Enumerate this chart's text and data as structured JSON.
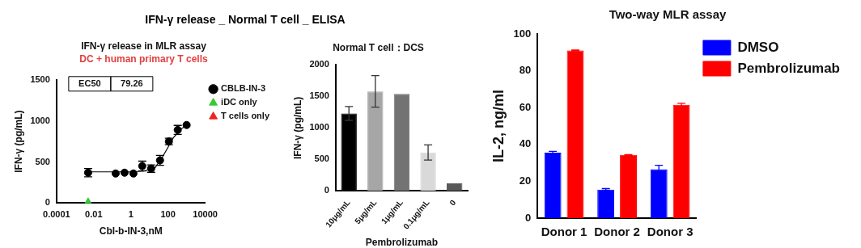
{
  "chart_data": [
    {
      "type": "scatter",
      "title": "IFN-γ release in MLR assay",
      "subtitle": "DC + human primary T cells",
      "xlabel": "Cbl-b-IN-3,nM",
      "ylabel": "IFN-γ (pg/mL)",
      "annotations": [
        "IFN-γ release _ Normal T cell _ ELISA",
        "EC50",
        "79.26"
      ],
      "log": "x",
      "xlim": [
        0.0001,
        10000
      ],
      "xticks": [
        0.0001,
        0.01,
        1,
        100,
        10000
      ],
      "ylim": [
        0,
        1500
      ],
      "yticks": [
        0,
        500,
        1000,
        1500
      ],
      "grid": false,
      "legend": "top right",
      "series": [
        {
          "name": "CBLB-IN-3",
          "type": "scatter",
          "marker": "circle",
          "color": "#000000",
          "x": [
            0.005,
            0.152,
            0.457,
            1.37,
            4.1,
            12.3,
            37,
            111,
            333,
            1000
          ],
          "values": [
            370,
            360,
            370,
            360,
            450,
            420,
            520,
            750,
            890,
            950
          ],
          "errors": [
            50,
            null,
            null,
            null,
            60,
            45,
            60,
            40,
            55,
            null
          ]
        },
        {
          "type": "line",
          "marker": "none",
          "color": "#000000",
          "x": [
            0.005,
            1,
            5,
            20,
            50,
            100,
            200,
            500,
            1000
          ],
          "values": [
            380,
            380,
            390,
            430,
            560,
            680,
            800,
            900,
            950
          ]
        },
        {
          "name": "iDC only",
          "type": "scatter",
          "marker": "triangle",
          "color": "#33cc33",
          "x": [
            0.005
          ],
          "values": [
            20
          ]
        },
        {
          "name": "T cells only",
          "type": "scatter",
          "marker": "triangle",
          "color": "#ee2222"
        }
      ]
    },
    {
      "type": "bar",
      "title": "Normal T cell：DCS",
      "xlabel": "Pembrolizumab",
      "ylabel": "IFN-γ (pg/mL)",
      "categories": [
        "10μg/mL",
        "5μg/mL",
        "1μg/mL",
        "0.1μg/mL",
        "0"
      ],
      "values": [
        1230,
        1580,
        1540,
        610,
        120
      ],
      "errors": [
        110,
        250,
        null,
        120,
        null
      ],
      "colors": [
        "#000000",
        "#a6a6a6",
        "#737373",
        "#d9d9d9",
        "#595959"
      ],
      "ylim": [
        0,
        2000
      ],
      "yticks": [
        0,
        500,
        1000,
        1500,
        2000
      ],
      "grid": false
    },
    {
      "type": "bar",
      "title": "Two-way MLR assay",
      "ylabel": "IL-2, ng/ml",
      "categories": [
        "Donor 1",
        "Donor 2",
        "Donor 3"
      ],
      "ylim": [
        0,
        100
      ],
      "yticks": [
        0,
        20,
        40,
        60,
        80,
        100
      ],
      "grid": false,
      "legend": "top right",
      "series": [
        {
          "name": "DMSO",
          "color": "#0000ff",
          "values": [
            35.5,
            15.5,
            26.5
          ],
          "errors": [
            0.7,
            0.5,
            2.2
          ]
        },
        {
          "name": "Pembrolizumab",
          "color": "#ff0000",
          "values": [
            91,
            34.3,
            61.5
          ],
          "errors": [
            0.3,
            0.2,
            0.8
          ]
        }
      ]
    }
  ]
}
